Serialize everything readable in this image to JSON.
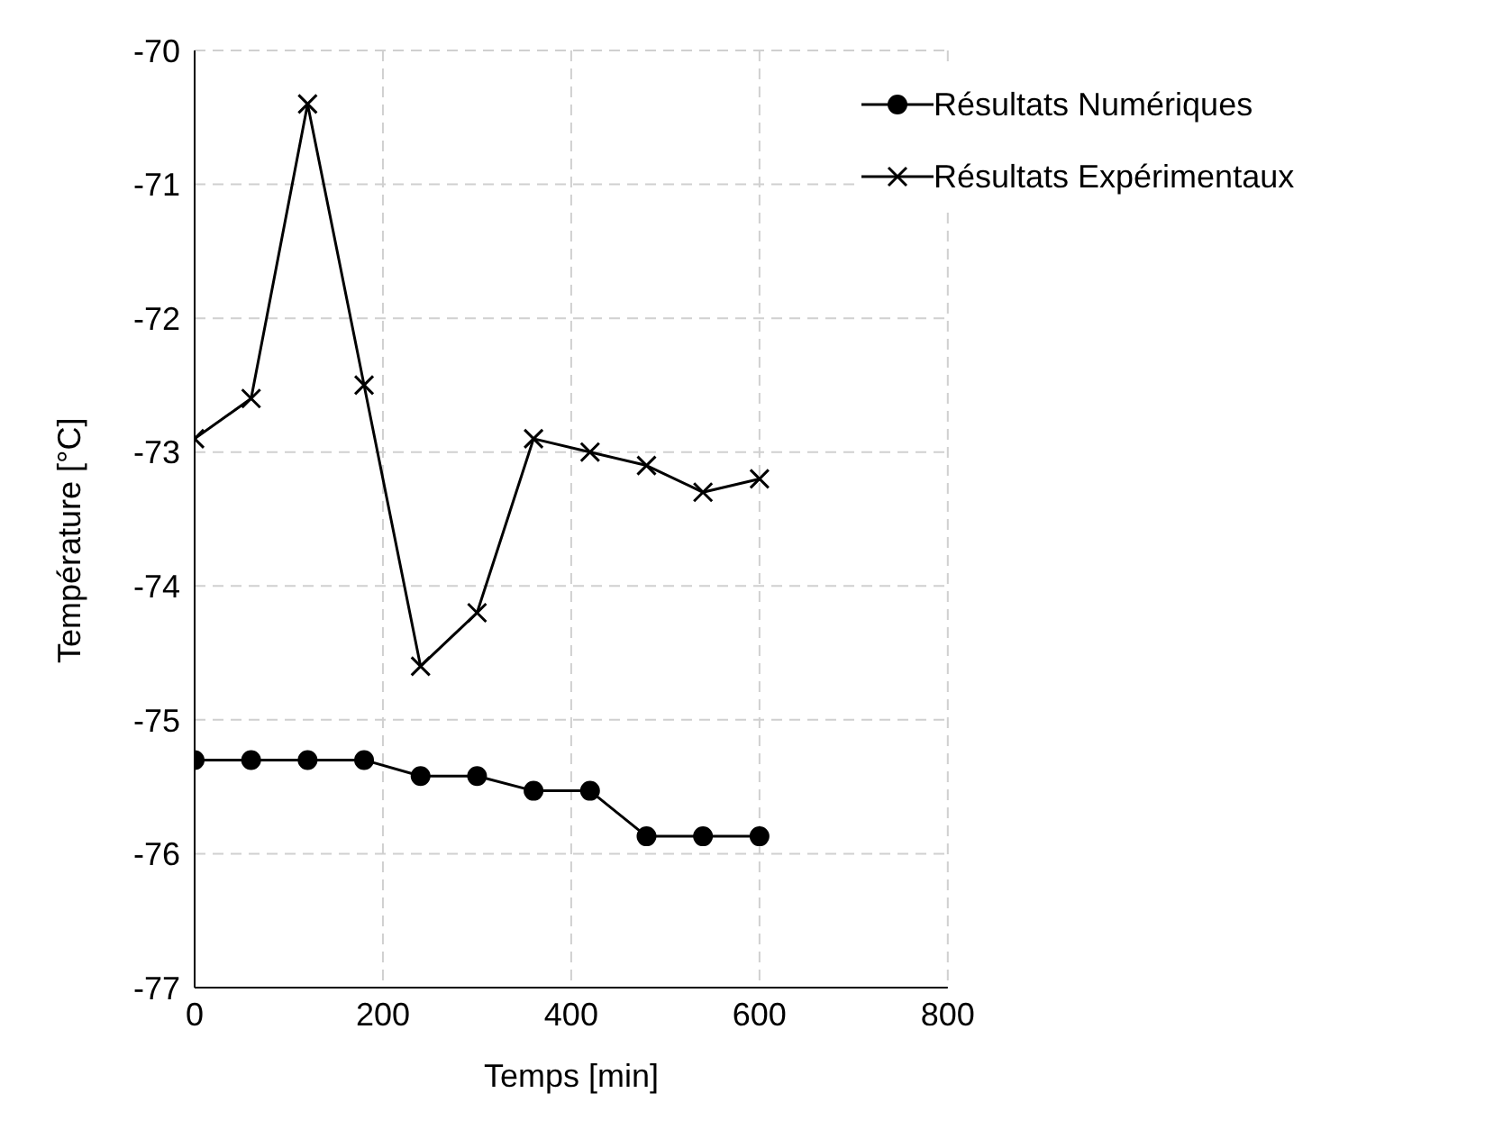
{
  "chart_data": {
    "type": "line",
    "xlabel": "Temps [min]",
    "ylabel": "Température [°C]",
    "xlim": [
      0,
      800
    ],
    "xticks": [
      0,
      200,
      400,
      600,
      800
    ],
    "ylim": [
      -77,
      -70
    ],
    "yticks": [
      -77,
      -76,
      -75,
      -74,
      -73,
      -72,
      -71,
      -70
    ],
    "grid": true,
    "legend": "top right",
    "line_style": "solid",
    "x": [
      0,
      60,
      120,
      180,
      240,
      300,
      360,
      420,
      480,
      540,
      600
    ],
    "series": [
      {
        "name": "Résultats Numériques",
        "color": "#000000",
        "marker": "circle",
        "values": [
          -75.3,
          -75.3,
          -75.3,
          -75.3,
          -75.42,
          -75.42,
          -75.53,
          -75.53,
          -75.87,
          -75.87,
          -75.87
        ]
      },
      {
        "name": "Résultats Expérimentaux",
        "color": "#000000",
        "marker": "cross",
        "values": [
          -72.9,
          -72.6,
          -70.4,
          -72.5,
          -74.6,
          -74.2,
          -72.9,
          -73.0,
          -73.1,
          -73.3,
          -73.2
        ]
      }
    ]
  }
}
